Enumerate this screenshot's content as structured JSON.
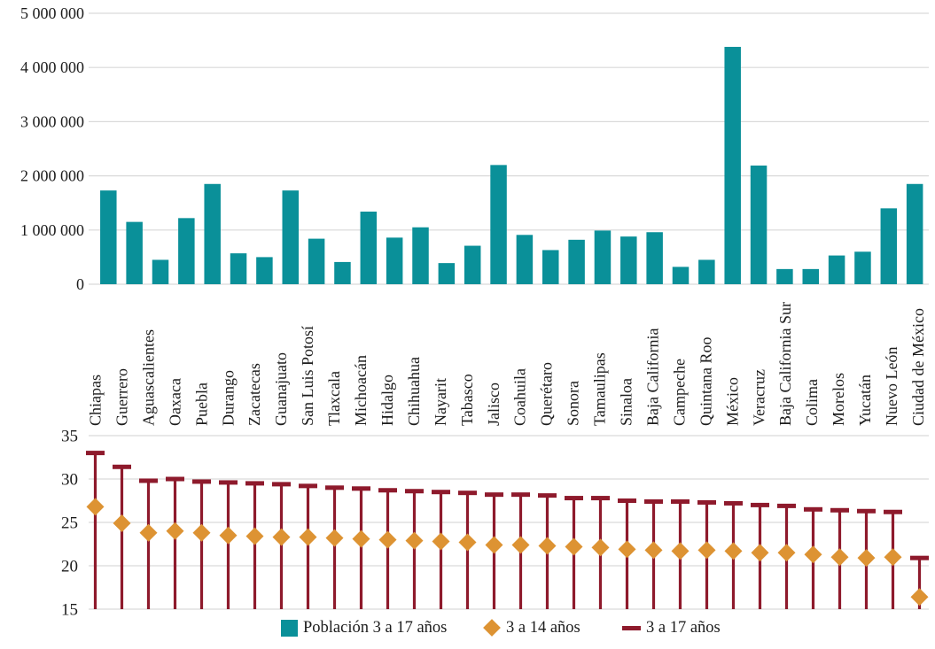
{
  "colors": {
    "teal": "#0a9099",
    "maroon": "#8e1a2c",
    "orange": "#dd9333",
    "gridline": "#d9d9d9",
    "text": "#1c1c1c"
  },
  "legend": {
    "items": [
      {
        "label": "Población 3 a 17 años",
        "marker": "square",
        "color": "#0a9099"
      },
      {
        "label": "3 a 14 años",
        "marker": "diamond",
        "color": "#dd9333"
      },
      {
        "label": "3 a 17 años",
        "marker": "dash",
        "color": "#8e1a2c"
      }
    ]
  },
  "chart_data": [
    {
      "type": "bar",
      "title": "",
      "xlabel": "",
      "ylabel": "",
      "grid": true,
      "ylim": [
        0,
        5000000
      ],
      "ytick_values": [
        5000000,
        4000000,
        3000000,
        2000000,
        1000000,
        0
      ],
      "ytick_labels": [
        "5 000 000",
        "4 000 000",
        "3 000 000",
        "2 000 000",
        "1 000 000",
        "0"
      ],
      "categories": [
        "Chiapas",
        "Guerrero",
        "Aguascalientes",
        "Oaxaca",
        "Puebla",
        "Durango",
        "Zacatecas",
        "Guanajuato",
        "San Luis Potosí",
        "Tlaxcala",
        "Michoacán",
        "Hidalgo",
        "Chihuahua",
        "Nayarit",
        "Tabasco",
        "Jalisco",
        "Coahuila",
        "Querétaro",
        "Sonora",
        "Tamaulipas",
        "Sinaloa",
        "Baja California",
        "Campeche",
        "Quintana Roo",
        "México",
        "Veracruz",
        "Baja California Sur",
        "Colima",
        "Morelos",
        "Yucatán",
        "Nuevo León",
        "Ciudad de México"
      ],
      "series": [
        {
          "name": "Población 3 a 17 años",
          "values": [
            1730000,
            1150000,
            450000,
            1220000,
            1850000,
            570000,
            500000,
            1730000,
            840000,
            410000,
            1340000,
            860000,
            1050000,
            390000,
            710000,
            2200000,
            910000,
            630000,
            820000,
            990000,
            880000,
            960000,
            320000,
            450000,
            4380000,
            2190000,
            280000,
            280000,
            530000,
            600000,
            1400000,
            1850000
          ]
        }
      ]
    },
    {
      "type": "scatter",
      "title": "",
      "xlabel": "",
      "ylabel": "",
      "grid": true,
      "ylim": [
        15,
        35
      ],
      "yticks": [
        35,
        30,
        25,
        20,
        15
      ],
      "legend_position": "bottom",
      "categories": [
        "Chiapas",
        "Guerrero",
        "Aguascalientes",
        "Oaxaca",
        "Puebla",
        "Durango",
        "Zacatecas",
        "Guanajuato",
        "San Luis Potosí",
        "Tlaxcala",
        "Michoacán",
        "Hidalgo",
        "Chihuahua",
        "Nayarit",
        "Tabasco",
        "Jalisco",
        "Coahuila",
        "Querétaro",
        "Sonora",
        "Tamaulipas",
        "Sinaloa",
        "Baja California",
        "Campeche",
        "Quintana Roo",
        "México",
        "Veracruz",
        "Baja California Sur",
        "Colima",
        "Morelos",
        "Yucatán",
        "Nuevo León",
        "Ciudad de México"
      ],
      "series": [
        {
          "name": "3 a 14 años",
          "marker": "diamond",
          "values": [
            26.8,
            24.9,
            23.8,
            24.0,
            23.8,
            23.5,
            23.4,
            23.3,
            23.3,
            23.2,
            23.1,
            23.0,
            22.9,
            22.8,
            22.7,
            22.4,
            22.4,
            22.3,
            22.2,
            22.1,
            21.9,
            21.8,
            21.7,
            21.8,
            21.7,
            21.5,
            21.5,
            21.3,
            21.0,
            20.9,
            21.0,
            16.4
          ]
        },
        {
          "name": "3 a 17 años",
          "marker": "dash-with-stem",
          "values": [
            33.0,
            31.4,
            29.8,
            30.0,
            29.7,
            29.6,
            29.5,
            29.4,
            29.2,
            29.0,
            28.9,
            28.7,
            28.6,
            28.5,
            28.4,
            28.2,
            28.2,
            28.1,
            27.8,
            27.8,
            27.5,
            27.4,
            27.4,
            27.3,
            27.2,
            27.0,
            26.9,
            26.5,
            26.4,
            26.3,
            26.2,
            20.9
          ]
        }
      ]
    }
  ]
}
